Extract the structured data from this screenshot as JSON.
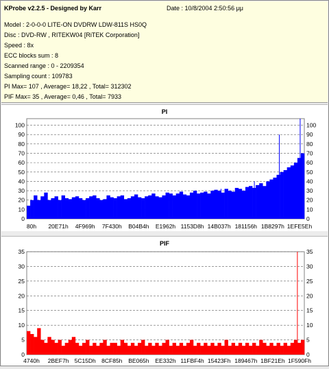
{
  "header": {
    "title": "KProbe v2.2.5 - Designed by Karr",
    "date": "Date : 10/8/2004 2:50:56 μμ",
    "lines": [
      "Model : 2-0-0-0 LITE-ON DVDRW LDW-811S   HS0Q",
      "Disc : DVD-RW , RITEKW04 [RiTEK Corporation]",
      "Speed : 8x",
      "ECC blocks sum : 8",
      "Scanned range : 0 - 2209354",
      "Sampling count : 109783",
      "PI Max= 107 , Average= 18,22 , Total= 312302",
      "PIF Max= 35 , Average= 0,46 , Total= 7933"
    ]
  },
  "chart_data": [
    {
      "type": "bar",
      "title": "PI",
      "ylim": [
        0,
        107
      ],
      "yticks": [
        0,
        10,
        20,
        30,
        40,
        50,
        60,
        70,
        80,
        90,
        100
      ],
      "xlabels": [
        "80h",
        "20E71h",
        "4F969h",
        "7F430h",
        "B04B4h",
        "E1962h",
        "1153D8h",
        "14B037h",
        "181156h",
        "1B8297h",
        "1EFE5Eh"
      ],
      "grid": true,
      "color": "#0000ff",
      "series": [
        {
          "values": [
            14,
            20,
            25,
            20,
            24,
            28,
            20,
            22,
            24,
            20,
            25,
            22,
            21,
            23,
            24,
            22,
            20,
            22,
            24,
            25,
            22,
            20,
            21,
            25,
            23,
            22,
            24,
            25,
            21,
            22,
            24,
            26,
            23,
            22,
            24,
            25,
            27,
            24,
            23,
            25,
            28,
            27,
            25,
            27,
            29,
            26,
            25,
            28,
            30,
            27,
            28,
            29,
            27,
            30,
            31,
            30,
            28,
            32,
            30,
            29,
            33,
            32,
            30,
            34,
            35,
            33,
            36,
            38,
            35,
            40,
            42,
            44,
            47,
            50,
            52,
            55,
            57,
            60,
            65,
            70
          ]
        }
      ],
      "spikes": [
        {
          "pos": 0.7,
          "value": 32
        },
        {
          "pos": 0.82,
          "value": 40
        },
        {
          "pos": 0.91,
          "value": 90
        },
        {
          "pos": 0.985,
          "value": 107
        }
      ]
    },
    {
      "type": "bar",
      "title": "PIF",
      "ylim": [
        0,
        35
      ],
      "yticks": [
        0,
        5,
        10,
        15,
        20,
        25,
        30,
        35
      ],
      "xlabels": [
        "4740h",
        "2BEF7h",
        "5C15Dh",
        "8CF85h",
        "BE065h",
        "EE332h",
        "11FBF4h",
        "15423Fh",
        "189467h",
        "1BF21Eh",
        "1F590Fh"
      ],
      "grid": true,
      "color": "#ff0000",
      "series": [
        {
          "values": [
            8,
            7,
            6,
            9,
            5,
            4,
            6,
            5,
            4,
            5,
            3,
            4,
            5,
            6,
            4,
            3,
            4,
            5,
            3,
            4,
            3,
            4,
            5,
            3,
            4,
            4,
            3,
            5,
            4,
            3,
            4,
            3,
            4,
            5,
            3,
            4,
            3,
            4,
            3,
            4,
            5,
            3,
            4,
            3,
            4,
            3,
            4,
            5,
            3,
            4,
            3,
            4,
            3,
            4,
            3,
            4,
            3,
            5,
            3,
            4,
            3,
            4,
            3,
            4,
            3,
            4,
            3,
            5,
            4,
            3,
            4,
            3,
            4,
            3,
            4,
            3,
            4,
            5,
            4,
            5
          ]
        }
      ],
      "spikes": [
        {
          "pos": 0.975,
          "value": 35
        }
      ]
    }
  ]
}
